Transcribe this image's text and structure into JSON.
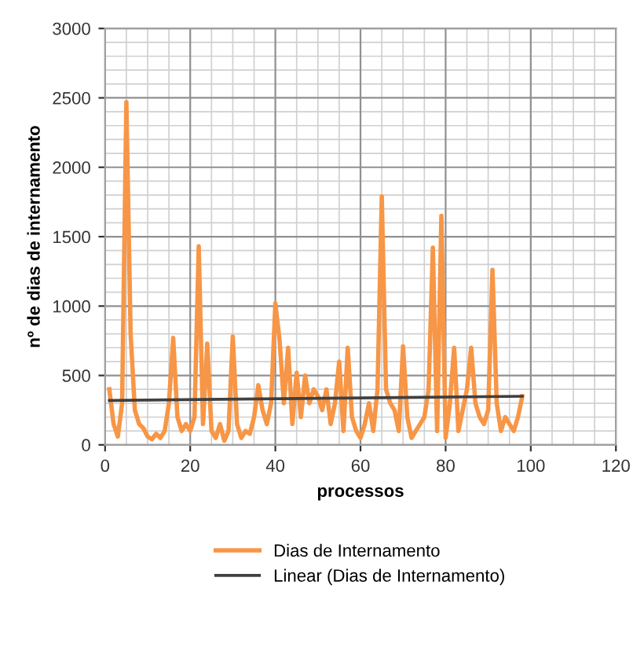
{
  "chart_data": {
    "type": "line",
    "xlabel": "processos",
    "ylabel": "nº de dias de internamento",
    "x": [
      1,
      2,
      3,
      4,
      5,
      6,
      7,
      8,
      9,
      10,
      11,
      12,
      13,
      14,
      15,
      16,
      17,
      18,
      19,
      20,
      21,
      22,
      23,
      24,
      25,
      26,
      27,
      28,
      29,
      30,
      31,
      32,
      33,
      34,
      35,
      36,
      37,
      38,
      39,
      40,
      41,
      42,
      43,
      44,
      45,
      46,
      47,
      48,
      49,
      50,
      51,
      52,
      53,
      54,
      55,
      56,
      57,
      58,
      59,
      60,
      61,
      62,
      63,
      64,
      65,
      66,
      67,
      68,
      69,
      70,
      71,
      72,
      73,
      74,
      75,
      76,
      77,
      78,
      79,
      80,
      81,
      82,
      83,
      84,
      85,
      86,
      87,
      88,
      89,
      90,
      91,
      92,
      93,
      94,
      95,
      96,
      97,
      98
    ],
    "series": [
      {
        "name": "Dias de Internamento",
        "color": "#f79646",
        "values": [
          400,
          150,
          60,
          300,
          2470,
          800,
          250,
          150,
          120,
          60,
          40,
          80,
          50,
          100,
          300,
          770,
          200,
          100,
          150,
          100,
          200,
          1430,
          150,
          730,
          100,
          50,
          150,
          30,
          100,
          780,
          150,
          50,
          100,
          80,
          200,
          430,
          250,
          150,
          300,
          1020,
          750,
          300,
          700,
          150,
          520,
          200,
          500,
          300,
          400,
          350,
          250,
          400,
          150,
          300,
          600,
          100,
          700,
          200,
          100,
          50,
          150,
          300,
          100,
          400,
          1790,
          400,
          300,
          250,
          100,
          710,
          200,
          50,
          100,
          150,
          200,
          400,
          1420,
          100,
          1650,
          50,
          300,
          700,
          100,
          250,
          400,
          700,
          300,
          200,
          150,
          250,
          1260,
          300,
          100,
          200,
          150,
          100,
          200,
          350
        ]
      },
      {
        "name": "Linear (Dias de Internamento)",
        "color": "#404040",
        "x": [
          1,
          98
        ],
        "values": [
          320,
          350
        ]
      }
    ],
    "xlim": [
      0,
      120
    ],
    "xticks": [
      0,
      20,
      40,
      60,
      80,
      100,
      120
    ],
    "ylim": [
      0,
      3000
    ],
    "yticks": [
      0,
      500,
      1000,
      1500,
      2000,
      2500,
      3000
    ],
    "grid": true,
    "legend": "bottom",
    "marker": "none",
    "line_style": "solid"
  }
}
